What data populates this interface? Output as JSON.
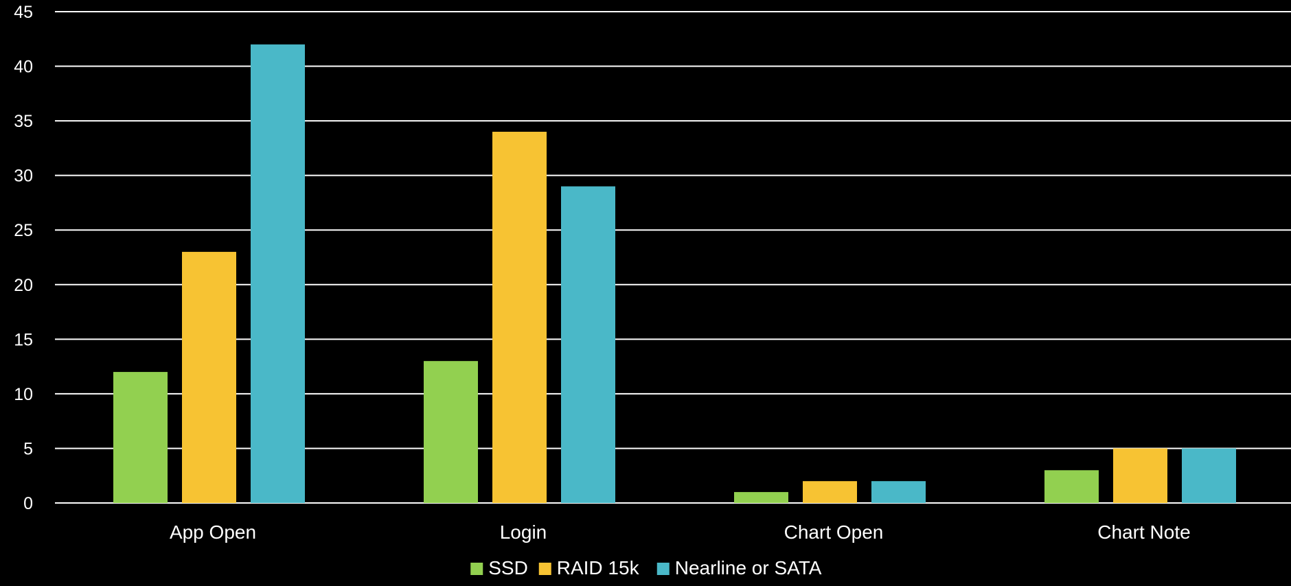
{
  "chart_data": {
    "type": "bar",
    "title": "",
    "xlabel": "",
    "ylabel": "",
    "categories": [
      "App Open",
      "Login",
      "Chart Open",
      "Chart Note"
    ],
    "series": [
      {
        "name": "SSD",
        "color": "#92d050",
        "values": [
          12,
          13,
          1,
          3
        ]
      },
      {
        "name": "RAID 15k",
        "color": "#f7c333",
        "values": [
          23,
          34,
          2,
          5
        ]
      },
      {
        "name": "Nearline or SATA",
        "color": "#4ab8c8",
        "values": [
          42,
          29,
          2,
          5
        ]
      }
    ],
    "ylim": [
      0,
      45
    ],
    "yticks": [
      0,
      5,
      10,
      15,
      20,
      25,
      30,
      35,
      40,
      45
    ],
    "grid": true,
    "legend": "bottom-center",
    "background": "#000000",
    "gridline_color": "#ffffff",
    "text_color": "#ffffff"
  }
}
